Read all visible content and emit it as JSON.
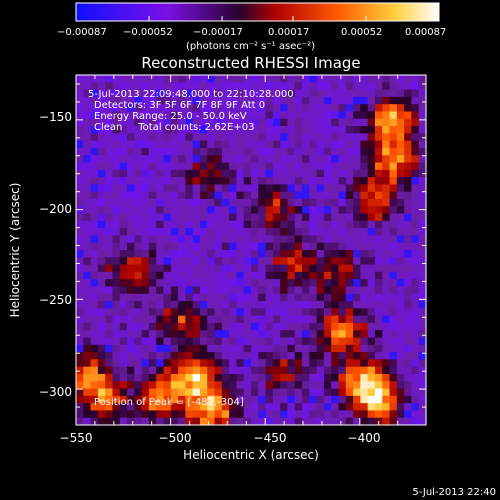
{
  "chart_data": {
    "type": "heatmap",
    "title": "Reconstructed RHESSI Image",
    "xlabel": "Heliocentric X (arcsec)",
    "ylabel": "Heliocentric Y (arcsec)",
    "xlim": [
      -550,
      -365
    ],
    "ylim": [
      -320,
      -125
    ],
    "x_ticks": [
      -550,
      -500,
      -450,
      -400
    ],
    "x_tick_labels": [
      "−550",
      "−500",
      "−450",
      "−400"
    ],
    "y_ticks": [
      -150,
      -200,
      -250,
      -300
    ],
    "y_tick_labels": [
      "−150",
      "−200",
      "−250",
      "−300"
    ],
    "colorbar": {
      "ticks": [
        "−0.00087",
        "−0.00052",
        "−0.00017",
        "0.00017",
        "0.00052",
        "0.00087"
      ],
      "unit_label": "(photons cm⁻² s⁻¹ asec⁻²)",
      "range": [
        -0.00087,
        0.00087
      ],
      "colors": [
        "#1010ff",
        "#8a00c8",
        "#d00000",
        "#ff7a00",
        "#ffe040",
        "#ffffff"
      ]
    },
    "annotations": [
      "5-Jul-2013 22:09:48.000 to 22:10:28.000",
      "Detectors: 3F 5F 6F 7F 8F 9F  Att 0",
      "Energy Range: 25.0 - 50.0 keV",
      "Clean     Total counts: 2.62E+03"
    ],
    "peak_label": "Position of Peak = [-482,-304]",
    "peak": [
      -482,
      -304
    ],
    "bright_regions": [
      {
        "x": -488,
        "y": -293,
        "intensity": 1.0
      },
      {
        "x": -478,
        "y": -312,
        "intensity": 0.95
      },
      {
        "x": -505,
        "y": -305,
        "intensity": 0.8
      },
      {
        "x": -535,
        "y": -305,
        "intensity": 0.8
      },
      {
        "x": -545,
        "y": -290,
        "intensity": 0.7
      },
      {
        "x": -398,
        "y": -295,
        "intensity": 0.95
      },
      {
        "x": -390,
        "y": -308,
        "intensity": 0.9
      },
      {
        "x": -410,
        "y": -268,
        "intensity": 0.85
      },
      {
        "x": -383,
        "y": -150,
        "intensity": 0.95
      },
      {
        "x": -382,
        "y": -172,
        "intensity": 0.85
      },
      {
        "x": -392,
        "y": -195,
        "intensity": 0.75
      },
      {
        "x": -520,
        "y": -235,
        "intensity": 0.7
      },
      {
        "x": -495,
        "y": -262,
        "intensity": 0.6
      },
      {
        "x": -435,
        "y": -230,
        "intensity": 0.6
      },
      {
        "x": -445,
        "y": -200,
        "intensity": 0.55
      },
      {
        "x": -412,
        "y": -235,
        "intensity": 0.55
      },
      {
        "x": -480,
        "y": -180,
        "intensity": 0.45
      },
      {
        "x": -440,
        "y": -290,
        "intensity": 0.5
      }
    ],
    "footer_date": "5-Jul-2013 22:40"
  }
}
